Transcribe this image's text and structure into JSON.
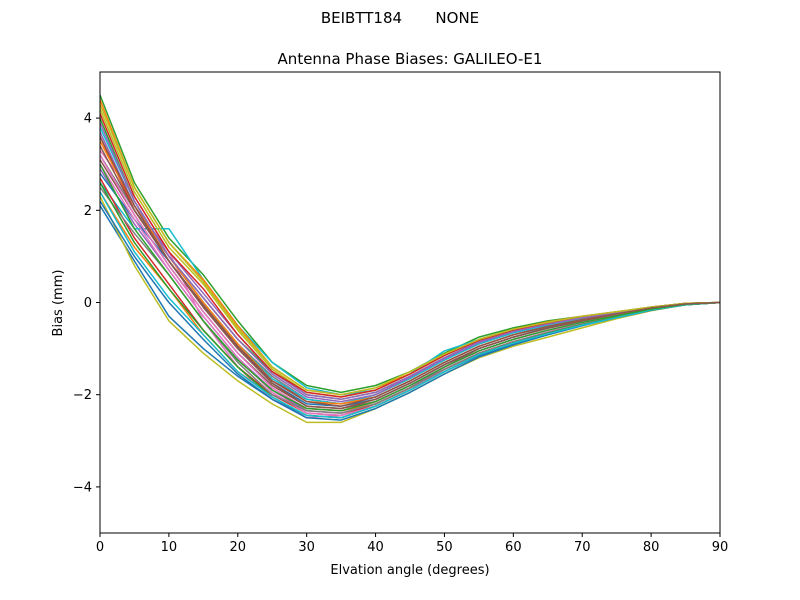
{
  "figure": {
    "suptitle": "BEIBTT184       NONE"
  },
  "chart_data": {
    "type": "line",
    "title": "Antenna Phase Biases: GALILEO-E1",
    "xlabel": "Elvation angle (degrees)",
    "ylabel": "Bias (mm)",
    "xlim": [
      0,
      90
    ],
    "ylim": [
      -5,
      5
    ],
    "xticks": [
      0,
      10,
      20,
      30,
      40,
      50,
      60,
      70,
      80,
      90
    ],
    "yticks": [
      -4,
      -2,
      0,
      2,
      4
    ],
    "ytick_labels": [
      "−4",
      "−2",
      "0",
      "2",
      "4"
    ],
    "grid": false,
    "legend": "none",
    "x": [
      0,
      5,
      10,
      15,
      20,
      25,
      30,
      35,
      40,
      45,
      50,
      55,
      60,
      65,
      70,
      75,
      80,
      85,
      90
    ],
    "series": [
      {
        "color": "#1f77b4",
        "values": [
          2.1,
          0.9,
          -0.3,
          -1.0,
          -1.6,
          -2.1,
          -2.45,
          -2.5,
          -2.25,
          -1.9,
          -1.5,
          -1.15,
          -0.9,
          -0.7,
          -0.5,
          -0.3,
          -0.15,
          -0.05,
          0
        ]
      },
      {
        "color": "#ff7f0e",
        "values": [
          2.4,
          1.2,
          0.3,
          -0.7,
          -1.5,
          -2.0,
          -2.3,
          -2.35,
          -2.2,
          -1.85,
          -1.45,
          -1.1,
          -0.85,
          -0.65,
          -0.45,
          -0.3,
          -0.15,
          -0.05,
          0
        ]
      },
      {
        "color": "#2ca02c",
        "values": [
          4.5,
          2.6,
          1.4,
          0.6,
          -0.4,
          -1.3,
          -1.8,
          -1.95,
          -1.8,
          -1.5,
          -1.1,
          -0.75,
          -0.55,
          -0.4,
          -0.3,
          -0.2,
          -0.1,
          -0.02,
          0
        ]
      },
      {
        "color": "#d62728",
        "values": [
          3.6,
          2.0,
          0.9,
          -0.1,
          -1.0,
          -1.7,
          -2.1,
          -2.2,
          -2.05,
          -1.7,
          -1.3,
          -0.95,
          -0.7,
          -0.5,
          -0.35,
          -0.25,
          -0.12,
          -0.03,
          0
        ]
      },
      {
        "color": "#9467bd",
        "values": [
          2.9,
          1.7,
          0.7,
          -0.3,
          -1.2,
          -1.9,
          -2.35,
          -2.4,
          -2.2,
          -1.85,
          -1.4,
          -1.05,
          -0.8,
          -0.6,
          -0.45,
          -0.3,
          -0.15,
          -0.05,
          0
        ]
      },
      {
        "color": "#8c564b",
        "values": [
          3.1,
          1.9,
          0.8,
          -0.2,
          -1.1,
          -1.8,
          -2.25,
          -2.3,
          -2.15,
          -1.8,
          -1.4,
          -1.0,
          -0.75,
          -0.55,
          -0.4,
          -0.28,
          -0.14,
          -0.04,
          0
        ]
      },
      {
        "color": "#e377c2",
        "values": [
          3.3,
          2.3,
          1.1,
          -0.4,
          -1.4,
          -2.1,
          -2.5,
          -2.45,
          -2.25,
          -1.9,
          -1.45,
          -1.1,
          -0.85,
          -0.65,
          -0.45,
          -0.3,
          -0.15,
          -0.05,
          0
        ]
      },
      {
        "color": "#7f7f7f",
        "values": [
          3.2,
          2.0,
          1.0,
          0.0,
          -0.9,
          -1.6,
          -2.1,
          -2.2,
          -2.0,
          -1.65,
          -1.25,
          -0.9,
          -0.65,
          -0.5,
          -0.35,
          -0.25,
          -0.12,
          -0.03,
          0
        ]
      },
      {
        "color": "#bcbd22",
        "values": [
          2.3,
          0.8,
          -0.4,
          -1.1,
          -1.7,
          -2.2,
          -2.6,
          -2.6,
          -2.3,
          -1.95,
          -1.55,
          -1.2,
          -0.95,
          -0.75,
          -0.55,
          -0.35,
          -0.18,
          -0.05,
          0
        ]
      },
      {
        "color": "#17becf",
        "values": [
          2.6,
          1.6,
          1.6,
          0.5,
          -0.5,
          -1.3,
          -1.85,
          -2.0,
          -1.9,
          -1.55,
          -1.05,
          -0.8,
          -0.6,
          -0.45,
          -0.32,
          -0.22,
          -0.1,
          -0.02,
          0
        ]
      },
      {
        "color": "#1f77b4",
        "values": [
          2.8,
          1.8,
          0.9,
          -0.1,
          -1.0,
          -1.75,
          -2.2,
          -2.25,
          -2.1,
          -1.75,
          -1.35,
          -1.0,
          -0.75,
          -0.55,
          -0.4,
          -0.27,
          -0.13,
          -0.04,
          0
        ]
      },
      {
        "color": "#ff7f0e",
        "values": [
          4.4,
          2.5,
          1.3,
          0.5,
          -0.5,
          -1.4,
          -1.9,
          -2.0,
          -1.85,
          -1.55,
          -1.15,
          -0.8,
          -0.58,
          -0.42,
          -0.3,
          -0.2,
          -0.1,
          -0.02,
          0
        ]
      },
      {
        "color": "#2ca02c",
        "values": [
          4.0,
          2.2,
          1.0,
          0.1,
          -0.8,
          -1.5,
          -2.0,
          -2.1,
          -1.95,
          -1.6,
          -1.2,
          -0.85,
          -0.6,
          -0.45,
          -0.32,
          -0.22,
          -0.1,
          -0.02,
          0
        ]
      },
      {
        "color": "#d62728",
        "values": [
          2.7,
          1.4,
          0.4,
          -0.6,
          -1.4,
          -2.0,
          -2.4,
          -2.45,
          -2.2,
          -1.85,
          -1.45,
          -1.1,
          -0.85,
          -0.65,
          -0.48,
          -0.32,
          -0.16,
          -0.05,
          0
        ]
      },
      {
        "color": "#9467bd",
        "values": [
          3.7,
          2.1,
          1.1,
          0.2,
          -0.7,
          -1.5,
          -2.0,
          -2.1,
          -1.95,
          -1.6,
          -1.2,
          -0.85,
          -0.62,
          -0.46,
          -0.33,
          -0.22,
          -0.11,
          -0.03,
          0
        ]
      },
      {
        "color": "#8c564b",
        "values": [
          3.4,
          2.0,
          0.9,
          -0.1,
          -1.0,
          -1.75,
          -2.25,
          -2.3,
          -2.1,
          -1.75,
          -1.35,
          -1.0,
          -0.75,
          -0.56,
          -0.4,
          -0.27,
          -0.13,
          -0.04,
          0
        ]
      },
      {
        "color": "#e377c2",
        "values": [
          3.0,
          1.8,
          0.7,
          -0.3,
          -1.2,
          -1.95,
          -2.4,
          -2.45,
          -2.25,
          -1.9,
          -1.45,
          -1.1,
          -0.85,
          -0.64,
          -0.46,
          -0.31,
          -0.15,
          -0.05,
          0
        ]
      },
      {
        "color": "#7f7f7f",
        "values": [
          2.5,
          1.5,
          0.6,
          -0.4,
          -1.3,
          -2.0,
          -2.35,
          -2.4,
          -2.2,
          -1.85,
          -1.45,
          -1.1,
          -0.85,
          -0.65,
          -0.47,
          -0.31,
          -0.15,
          -0.05,
          0
        ]
      },
      {
        "color": "#bcbd22",
        "values": [
          4.2,
          2.4,
          1.2,
          0.4,
          -0.6,
          -1.45,
          -1.95,
          -2.05,
          -1.9,
          -1.55,
          -1.15,
          -0.82,
          -0.6,
          -0.44,
          -0.31,
          -0.21,
          -0.1,
          -0.02,
          0
        ]
      },
      {
        "color": "#17becf",
        "values": [
          3.8,
          2.2,
          1.0,
          0.0,
          -0.9,
          -1.65,
          -2.1,
          -2.2,
          -2.0,
          -1.65,
          -1.25,
          -0.9,
          -0.66,
          -0.49,
          -0.35,
          -0.24,
          -0.12,
          -0.03,
          0
        ]
      },
      {
        "color": "#1f77b4",
        "values": [
          2.2,
          1.0,
          0.0,
          -0.8,
          -1.55,
          -2.1,
          -2.5,
          -2.55,
          -2.3,
          -1.95,
          -1.55,
          -1.18,
          -0.92,
          -0.7,
          -0.5,
          -0.33,
          -0.17,
          -0.05,
          0
        ]
      },
      {
        "color": "#ff7f0e",
        "values": [
          3.5,
          2.1,
          1.0,
          0.0,
          -0.9,
          -1.7,
          -2.15,
          -2.2,
          -2.05,
          -1.7,
          -1.3,
          -0.95,
          -0.7,
          -0.52,
          -0.37,
          -0.25,
          -0.12,
          -0.03,
          0
        ]
      },
      {
        "color": "#2ca02c",
        "values": [
          2.6,
          1.3,
          0.3,
          -0.6,
          -1.4,
          -2.05,
          -2.45,
          -2.5,
          -2.25,
          -1.9,
          -1.5,
          -1.13,
          -0.88,
          -0.67,
          -0.48,
          -0.32,
          -0.16,
          -0.05,
          0
        ]
      },
      {
        "color": "#d62728",
        "values": [
          4.1,
          2.3,
          1.1,
          0.3,
          -0.7,
          -1.5,
          -1.95,
          -2.05,
          -1.9,
          -1.55,
          -1.15,
          -0.82,
          -0.6,
          -0.44,
          -0.31,
          -0.21,
          -0.1,
          -0.02,
          0
        ]
      },
      {
        "color": "#9467bd",
        "values": [
          3.9,
          2.2,
          1.0,
          0.1,
          -0.8,
          -1.55,
          -2.05,
          -2.15,
          -2.0,
          -1.62,
          -1.22,
          -0.87,
          -0.63,
          -0.47,
          -0.33,
          -0.23,
          -0.11,
          -0.03,
          0
        ]
      },
      {
        "color": "#e377c2",
        "values": [
          3.2,
          1.9,
          0.8,
          -0.2,
          -1.1,
          -1.85,
          -2.3,
          -2.35,
          -2.15,
          -1.8,
          -1.4,
          -1.05,
          -0.8,
          -0.6,
          -0.43,
          -0.29,
          -0.14,
          -0.04,
          0
        ]
      },
      {
        "color": "#bcbd22",
        "values": [
          4.3,
          2.5,
          1.3,
          0.45,
          -0.55,
          -1.4,
          -1.9,
          -2.0,
          -1.85,
          -1.5,
          -1.12,
          -0.8,
          -0.58,
          -0.43,
          -0.3,
          -0.2,
          -0.1,
          -0.02,
          0
        ]
      },
      {
        "color": "#17becf",
        "values": [
          2.4,
          1.1,
          0.1,
          -0.7,
          -1.5,
          -2.05,
          -2.45,
          -2.5,
          -2.25,
          -1.9,
          -1.5,
          -1.13,
          -0.88,
          -0.68,
          -0.49,
          -0.33,
          -0.16,
          -0.05,
          0
        ]
      },
      {
        "color": "#2ca02c",
        "values": [
          3.0,
          1.6,
          0.6,
          -0.4,
          -1.25,
          -1.9,
          -2.3,
          -2.35,
          -2.15,
          -1.8,
          -1.4,
          -1.05,
          -0.8,
          -0.6,
          -0.43,
          -0.29,
          -0.14,
          -0.04,
          0
        ]
      },
      {
        "color": "#8c564b",
        "values": [
          3.6,
          2.1,
          0.9,
          -0.05,
          -0.95,
          -1.7,
          -2.15,
          -2.25,
          -2.05,
          -1.7,
          -1.3,
          -0.95,
          -0.7,
          -0.52,
          -0.37,
          -0.25,
          -0.12,
          -0.03,
          0
        ]
      }
    ]
  }
}
